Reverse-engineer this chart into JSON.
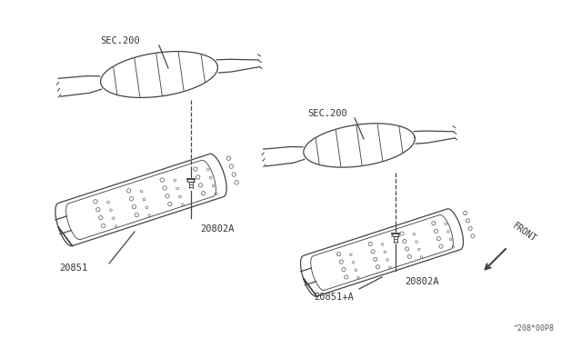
{
  "background_color": "#ffffff",
  "line_color": "#444444",
  "fig_width": 6.4,
  "fig_height": 3.72,
  "dpi": 100,
  "labels": {
    "sec200_left": "SEC.200",
    "sec200_right": "SEC.200",
    "part_20802A_left": "20802A",
    "part_20851_left": "20851",
    "part_20802A_right": "20802A",
    "part_20851A_right": "20851+A",
    "front": "FRONT",
    "watermark": "^208*00P8"
  }
}
